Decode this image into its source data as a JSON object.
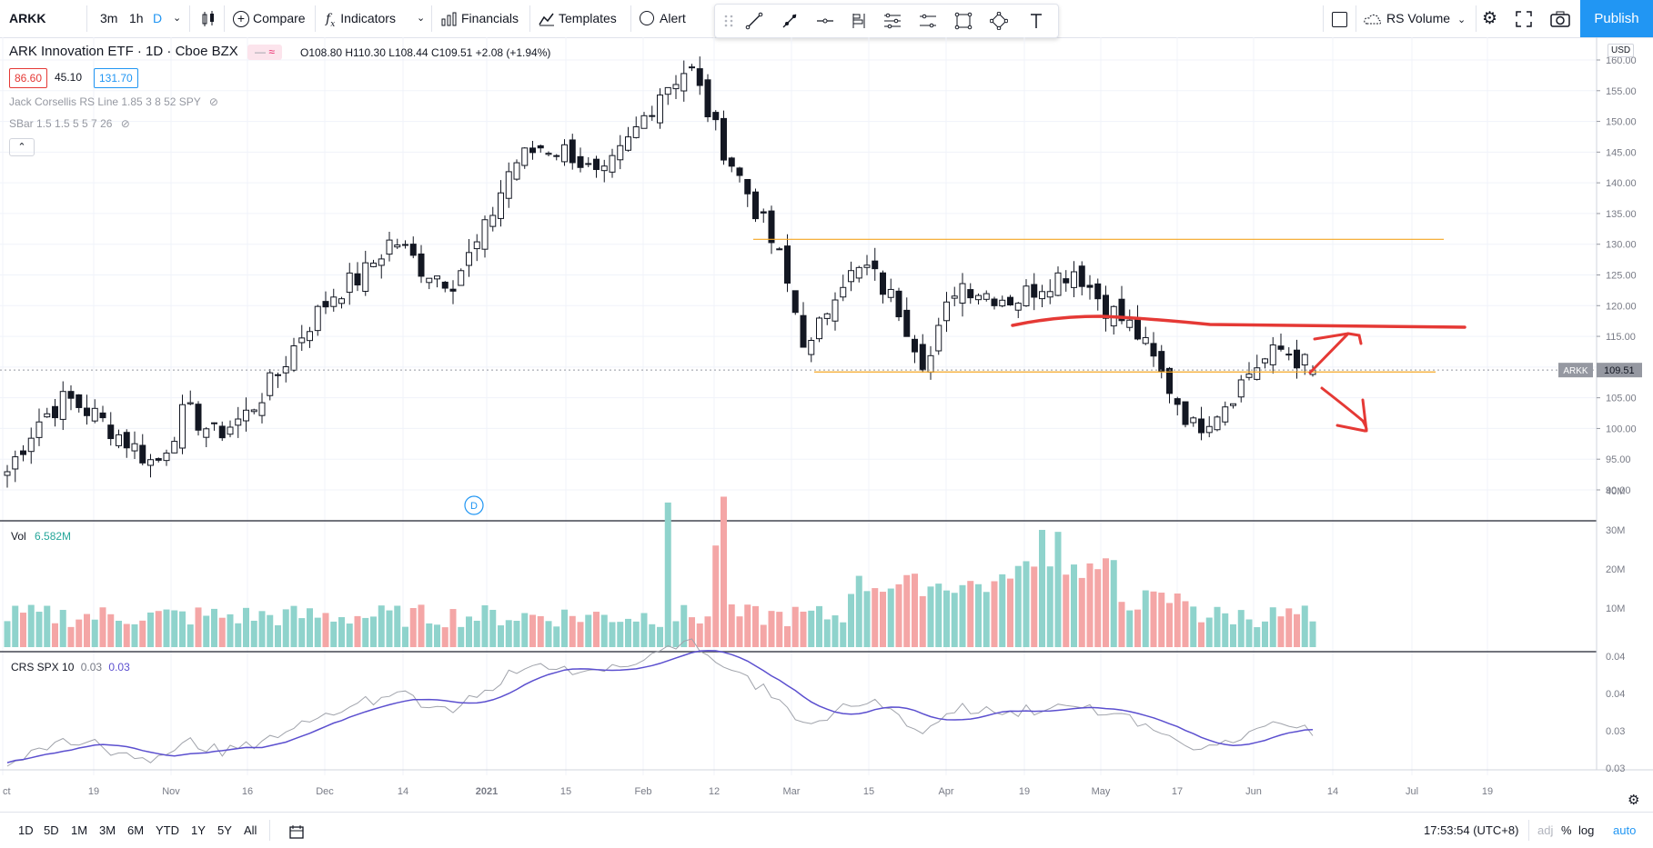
{
  "toolbar": {
    "symbol": "ARKK",
    "intervals": [
      "3m",
      "1h",
      "D"
    ],
    "compare": "Compare",
    "indicators": "Indicators",
    "financials": "Financials",
    "templates": "Templates",
    "alert": "Alert",
    "rs_volume": "RS Volume",
    "publish": "Publish"
  },
  "legend": {
    "title": "ARK Innovation ETF · 1D · Cboe BZX",
    "open": "O108.80",
    "high": "H110.30",
    "low": "L108.44",
    "close": "C109.51",
    "change": "+2.08 (+1.94%)",
    "badge_left": "86.60",
    "badge_mid": "45.10",
    "badge_right": "131.70",
    "indicator1": "Jack Corsellis RS Line 1.85 3 8 52 SPY",
    "indicator2": "SBar 1.5 1.5 5 5 7 26"
  },
  "price_axis": {
    "currency": "USD",
    "ticks": [
      "160.00",
      "155.00",
      "150.00",
      "145.00",
      "140.00",
      "135.00",
      "130.00",
      "125.00",
      "120.00",
      "115.00",
      "110.00",
      "105.00",
      "100.00",
      "95.00",
      "90.00"
    ],
    "last_label": "ARKK",
    "last_value": "109.51"
  },
  "volume_pane": {
    "label": "Vol",
    "value": "6.582M",
    "ticks": [
      "40M",
      "30M",
      "20M",
      "10M"
    ]
  },
  "crs_pane": {
    "label": "CRS SPX 10",
    "value1": "0.03",
    "value2": "0.03",
    "ticks": [
      "0.04",
      "0.04",
      "0.03",
      "0.03"
    ]
  },
  "time_axis": {
    "labels": [
      "ct",
      "19",
      "Nov",
      "16",
      "Dec",
      "14",
      "2021",
      "15",
      "Feb",
      "12",
      "Mar",
      "15",
      "Apr",
      "19",
      "May",
      "17",
      "Jun",
      "14",
      "Jul",
      "19"
    ]
  },
  "event_marker": "D",
  "bottom": {
    "ranges": [
      "1D",
      "5D",
      "1M",
      "3M",
      "6M",
      "YTD",
      "1Y",
      "5Y",
      "All"
    ],
    "time": "17:53:54 (UTC+8)",
    "adj": "adj",
    "pct": "%",
    "log": "log",
    "auto": "auto"
  },
  "colors": {
    "up_volume": "#8fd3cc",
    "down_volume": "#f4a6a6",
    "level_line": "#f5a623",
    "annotation": "#e53935",
    "rs_line": "#5b4fcf",
    "accent": "#2196f3"
  },
  "chart_data": {
    "type": "candlestick",
    "period": "1D",
    "levels": [
      130.8,
      109.2
    ],
    "candles_sampled_close": [
      93,
      101,
      105,
      102,
      98,
      94,
      103,
      99,
      102,
      108,
      116,
      122,
      125,
      131,
      126,
      124,
      131,
      143,
      146,
      145,
      140,
      147,
      155,
      159,
      147,
      138,
      128,
      112,
      124,
      126,
      120,
      110,
      124,
      122,
      121,
      124,
      126,
      120,
      116,
      108,
      100,
      104,
      110,
      113,
      109.51
    ]
  }
}
